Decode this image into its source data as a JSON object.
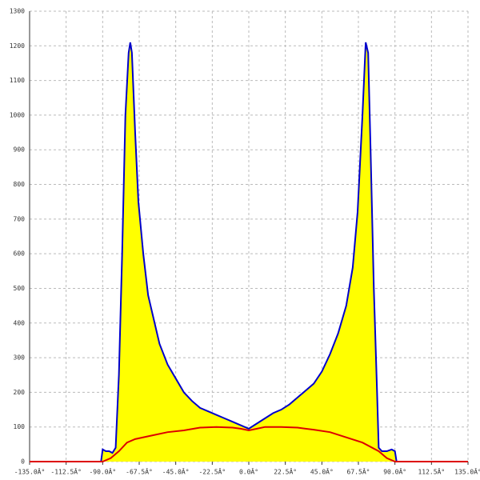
{
  "chart_data": {
    "type": "area",
    "xlim": [
      -135,
      135
    ],
    "ylim": [
      0,
      1300
    ],
    "xticks": [
      {
        "value": -135,
        "label": "-135.0Â°"
      },
      {
        "value": -112.5,
        "label": "-112.5Â°"
      },
      {
        "value": -90,
        "label": "-90.0Â°"
      },
      {
        "value": -67.5,
        "label": "-67.5Â°"
      },
      {
        "value": -45,
        "label": "-45.0Â°"
      },
      {
        "value": -22.5,
        "label": "-22.5Â°"
      },
      {
        "value": 0,
        "label": "0.0Â°"
      },
      {
        "value": 22.5,
        "label": "22.5Â°"
      },
      {
        "value": 45,
        "label": "45.0Â°"
      },
      {
        "value": 67.5,
        "label": "67.5Â°"
      },
      {
        "value": 90,
        "label": "90.0Â°"
      },
      {
        "value": 112.5,
        "label": "112.5Â°"
      },
      {
        "value": 135,
        "label": "135.0Â°"
      }
    ],
    "yticks": [
      0,
      100,
      200,
      300,
      400,
      500,
      600,
      700,
      800,
      900,
      1000,
      1100,
      1200,
      1300
    ],
    "grid": true,
    "series": [
      {
        "color": "#0000cc",
        "fill": "#ffff00",
        "x": [
          -91,
          -90,
          -88,
          -86,
          -84,
          -82,
          -80,
          -78,
          -76,
          -74,
          -73,
          -72,
          -70,
          -68,
          -65,
          -62,
          -58,
          -55,
          -50,
          -45,
          -40,
          -35,
          -30,
          -25,
          -20,
          -15,
          -10,
          -5,
          0,
          5,
          10,
          15,
          20,
          25,
          30,
          35,
          40,
          45,
          50,
          55,
          60,
          64,
          67,
          70,
          72,
          73.5,
          75,
          77,
          79,
          80,
          82,
          85,
          88,
          90,
          91
        ],
        "values": [
          0,
          35,
          30,
          30,
          25,
          40,
          250,
          600,
          1000,
          1180,
          1210,
          1180,
          950,
          750,
          600,
          480,
          400,
          340,
          280,
          240,
          200,
          175,
          155,
          145,
          135,
          125,
          115,
          105,
          95,
          110,
          125,
          140,
          150,
          165,
          185,
          205,
          225,
          260,
          310,
          370,
          450,
          560,
          720,
          1000,
          1210,
          1180,
          900,
          500,
          200,
          40,
          30,
          30,
          35,
          30,
          0
        ]
      },
      {
        "color": "#dd0000",
        "x": [
          -135,
          -90,
          -85,
          -80,
          -75,
          -70,
          -60,
          -50,
          -40,
          -30,
          -20,
          -10,
          -5,
          0,
          5,
          10,
          20,
          30,
          40,
          50,
          60,
          70,
          80,
          85,
          90,
          135
        ],
        "values": [
          0,
          0,
          10,
          30,
          55,
          65,
          75,
          85,
          90,
          98,
          100,
          98,
          95,
          90,
          95,
          100,
          100,
          98,
          92,
          85,
          70,
          55,
          30,
          10,
          0,
          0
        ]
      }
    ]
  }
}
